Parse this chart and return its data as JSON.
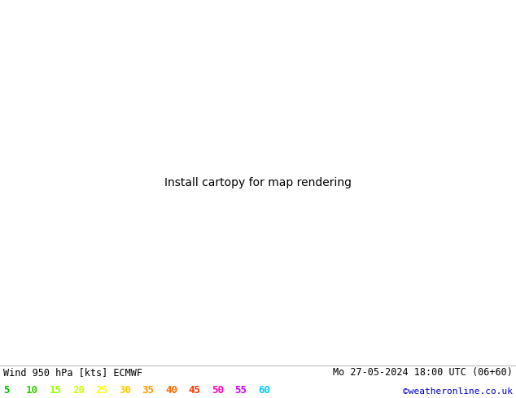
{
  "title_left": "Wind 950 hPa [kts] ECMWF",
  "title_right": "Mo 27-05-2024 18:00 UTC (06+60)",
  "credit": "©weatheronline.co.uk",
  "legend_values": [
    5,
    10,
    15,
    20,
    25,
    30,
    35,
    40,
    45,
    50,
    55,
    60
  ],
  "legend_colors": [
    "#00bb00",
    "#33cc00",
    "#99ff00",
    "#ccff00",
    "#ffff00",
    "#ffcc00",
    "#ff9900",
    "#ff6600",
    "#ff3300",
    "#ff00bb",
    "#cc00ff",
    "#00ccff"
  ],
  "bg_color": "#ffffff",
  "sea_color": "#d0d0d0",
  "land_color": "#90e890",
  "gray_land_color": "#c8c8c8",
  "bottom_bar_color": "#ffffff",
  "title_color": "#000000",
  "credit_color": "#0000cc",
  "fig_width": 6.34,
  "fig_height": 4.9,
  "dpi": 100,
  "extent": [
    0,
    32,
    54,
    72
  ],
  "arrow_scale": 0.8
}
